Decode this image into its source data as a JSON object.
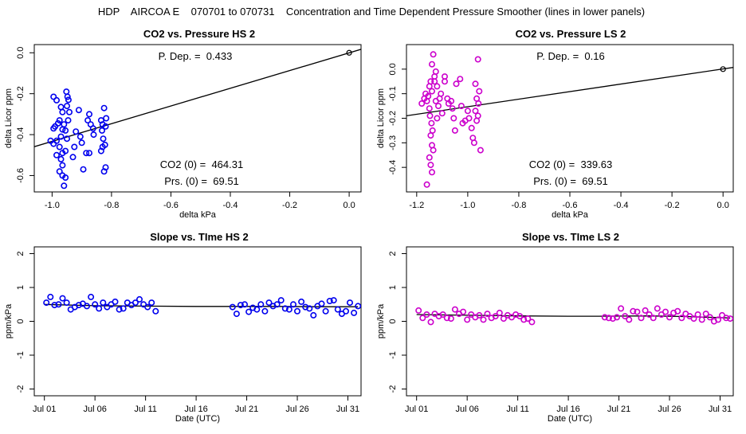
{
  "page_title": "HDP    AIRCOA E    070701 to 070731    Concentration and Time Dependent Pressure Smoother (lines in lower panels)",
  "colors": {
    "hs": "#0000ee",
    "ls": "#cc00cc",
    "axis": "#000000",
    "line": "#000000"
  },
  "chart_data": [
    {
      "id": "p1",
      "type": "scatter",
      "title": "CO2 vs. Pressure HS 2",
      "xlabel": "delta kPa",
      "ylabel": "delta Licor ppm",
      "xlim": [
        -1.06,
        0.04
      ],
      "ylim": [
        -0.68,
        0.04
      ],
      "xticks": [
        -1.0,
        -0.8,
        -0.6,
        -0.4,
        -0.2,
        0.0
      ],
      "xtick_labels": [
        "-1.0",
        "-0.8",
        "-0.6",
        "-0.4",
        "-0.2",
        "0.0"
      ],
      "yticks": [
        0.0,
        -0.2,
        -0.4,
        -0.6
      ],
      "ytick_labels": [
        "0.0",
        "-0.2",
        "-0.4",
        "-0.6"
      ],
      "color_key": "hs",
      "annotations": {
        "pdep": "P. Dep. =  0.433",
        "co2_0": "CO2 (0) =  464.31",
        "prs_0": "Prs. (0) =  69.51"
      },
      "fit_line": {
        "x": [
          -1.06,
          0.04
        ],
        "y": [
          -0.459,
          0.017
        ]
      },
      "reference_point": {
        "x": 0.0,
        "y": 0.0
      },
      "points": [
        [
          -0.995,
          -0.215
        ],
        [
          -0.985,
          -0.232
        ],
        [
          -0.97,
          -0.265
        ],
        [
          -0.965,
          -0.29
        ],
        [
          -0.975,
          -0.33
        ],
        [
          -0.99,
          -0.36
        ],
        [
          -0.98,
          -0.345
        ],
        [
          -0.995,
          -0.37
        ],
        [
          -0.965,
          -0.375
        ],
        [
          -0.97,
          -0.41
        ],
        [
          -0.985,
          -0.43
        ],
        [
          -0.995,
          -0.445
        ],
        [
          -1.005,
          -0.43
        ],
        [
          -0.975,
          -0.46
        ],
        [
          -0.965,
          -0.49
        ],
        [
          -0.985,
          -0.5
        ],
        [
          -0.97,
          -0.52
        ],
        [
          -0.965,
          -0.55
        ],
        [
          -0.975,
          -0.58
        ],
        [
          -0.965,
          -0.6
        ],
        [
          -0.955,
          -0.61
        ],
        [
          -0.96,
          -0.65
        ],
        [
          -0.955,
          -0.38
        ],
        [
          -0.96,
          -0.35
        ],
        [
          -0.95,
          -0.26
        ],
        [
          -0.948,
          -0.215
        ],
        [
          -0.952,
          -0.19
        ],
        [
          -0.945,
          -0.23
        ],
        [
          -0.942,
          -0.29
        ],
        [
          -0.946,
          -0.33
        ],
        [
          -0.95,
          -0.42
        ],
        [
          -0.955,
          -0.48
        ],
        [
          -0.93,
          -0.51
        ],
        [
          -0.925,
          -0.46
        ],
        [
          -0.92,
          -0.385
        ],
        [
          -0.91,
          -0.28
        ],
        [
          -0.905,
          -0.41
        ],
        [
          -0.9,
          -0.44
        ],
        [
          -0.895,
          -0.57
        ],
        [
          -0.885,
          -0.49
        ],
        [
          -0.875,
          -0.49
        ],
        [
          -0.88,
          -0.33
        ],
        [
          -0.875,
          -0.3
        ],
        [
          -0.87,
          -0.35
        ],
        [
          -0.86,
          -0.4
        ],
        [
          -0.862,
          -0.37
        ],
        [
          -0.835,
          -0.33
        ],
        [
          -0.83,
          -0.35
        ],
        [
          -0.825,
          -0.27
        ],
        [
          -0.832,
          -0.38
        ],
        [
          -0.828,
          -0.42
        ],
        [
          -0.822,
          -0.45
        ],
        [
          -0.83,
          -0.46
        ],
        [
          -0.835,
          -0.48
        ],
        [
          -0.82,
          -0.56
        ],
        [
          -0.825,
          -0.58
        ],
        [
          -0.818,
          -0.32
        ],
        [
          -0.82,
          -0.36
        ]
      ]
    },
    {
      "id": "p2",
      "type": "scatter",
      "title": "CO2 vs. Pressure LS 2",
      "xlabel": "delta kPa",
      "ylabel": "delta Licor ppm",
      "xlim": [
        -1.24,
        0.04
      ],
      "ylim": [
        -0.5,
        0.1
      ],
      "xticks": [
        -1.2,
        -1.0,
        -0.8,
        -0.6,
        -0.4,
        -0.2,
        0.0
      ],
      "xtick_labels": [
        "-1.2",
        "-1.0",
        "-0.8",
        "-0.6",
        "-0.4",
        "-0.2",
        "0.0"
      ],
      "yticks": [
        0.0,
        -0.1,
        -0.2,
        -0.3,
        -0.4
      ],
      "ytick_labels": [
        "0.0",
        "-0.1",
        "-0.2",
        "-0.3",
        "-0.4"
      ],
      "color_key": "ls",
      "annotations": {
        "pdep": "P. Dep. =  0.16",
        "co2_0": "CO2 (0) =  339.63",
        "prs_0": "Prs. (0) =  69.51"
      },
      "fit_line": {
        "x": [
          -1.24,
          0.04
        ],
        "y": [
          -0.19,
          0.007
        ]
      },
      "reference_point": {
        "x": 0.0,
        "y": 0.0
      },
      "points": [
        [
          -1.18,
          -0.14
        ],
        [
          -1.17,
          -0.12
        ],
        [
          -1.165,
          -0.1
        ],
        [
          -1.16,
          -0.13
        ],
        [
          -1.155,
          -0.11
        ],
        [
          -1.15,
          -0.07
        ],
        [
          -1.145,
          -0.05
        ],
        [
          -1.14,
          0.02
        ],
        [
          -1.135,
          0.06
        ],
        [
          -1.13,
          -0.03
        ],
        [
          -1.125,
          -0.01
        ],
        [
          -1.14,
          -0.09
        ],
        [
          -1.15,
          -0.16
        ],
        [
          -1.148,
          -0.19
        ],
        [
          -1.142,
          -0.22
        ],
        [
          -1.138,
          -0.25
        ],
        [
          -1.145,
          -0.27
        ],
        [
          -1.14,
          -0.31
        ],
        [
          -1.135,
          -0.33
        ],
        [
          -1.15,
          -0.36
        ],
        [
          -1.145,
          -0.39
        ],
        [
          -1.14,
          -0.42
        ],
        [
          -1.16,
          -0.47
        ],
        [
          -1.12,
          -0.2
        ],
        [
          -1.115,
          -0.15
        ],
        [
          -1.11,
          -0.12
        ],
        [
          -1.125,
          -0.13
        ],
        [
          -1.13,
          -0.05
        ],
        [
          -1.12,
          -0.07
        ],
        [
          -1.105,
          -0.1
        ],
        [
          -1.09,
          -0.03
        ],
        [
          -1.08,
          -0.12
        ],
        [
          -1.075,
          -0.14
        ],
        [
          -1.06,
          -0.16
        ],
        [
          -1.055,
          -0.2
        ],
        [
          -1.05,
          -0.25
        ],
        [
          -1.045,
          -0.06
        ],
        [
          -1.03,
          -0.04
        ],
        [
          -1.025,
          -0.15
        ],
        [
          -1.02,
          -0.22
        ],
        [
          -1.01,
          -0.21
        ],
        [
          -1.0,
          -0.17
        ],
        [
          -0.995,
          -0.2
        ],
        [
          -0.985,
          -0.24
        ],
        [
          -0.98,
          -0.28
        ],
        [
          -0.975,
          -0.3
        ],
        [
          -0.97,
          -0.06
        ],
        [
          -0.965,
          -0.12
        ],
        [
          -0.96,
          -0.19
        ],
        [
          -0.965,
          -0.21
        ],
        [
          -0.958,
          -0.14
        ],
        [
          -0.955,
          -0.09
        ],
        [
          -0.96,
          0.04
        ],
        [
          -0.95,
          -0.33
        ],
        [
          -0.97,
          -0.17
        ],
        [
          -1.065,
          -0.13
        ],
        [
          -1.1,
          -0.18
        ],
        [
          -1.09,
          -0.05
        ]
      ]
    },
    {
      "id": "p3",
      "type": "scatter",
      "title": "Slope vs. TIme HS 2",
      "xlabel": "Date (UTC)",
      "ylabel": "ppm/kPa",
      "xlim": [
        0.0,
        32.3
      ],
      "ylim": [
        -2.2,
        2.2
      ],
      "xticks": [
        1,
        6,
        11,
        16,
        21,
        26,
        31
      ],
      "xtick_labels": [
        "Jul 01",
        "Jul 06",
        "Jul 11",
        "Jul 16",
        "Jul 21",
        "Jul 26",
        "Jul 31"
      ],
      "yticks": [
        -2,
        -1,
        0,
        1,
        2
      ],
      "ytick_labels": [
        "-2",
        "-1",
        "0",
        "1",
        "2"
      ],
      "color_key": "hs",
      "smoother": [
        [
          1.0,
          0.5
        ],
        [
          6.0,
          0.46
        ],
        [
          11.0,
          0.45
        ],
        [
          16.0,
          0.44
        ],
        [
          19.0,
          0.44
        ],
        [
          24.0,
          0.44
        ],
        [
          28.0,
          0.43
        ],
        [
          32.0,
          0.43
        ]
      ],
      "points": [
        [
          1.2,
          0.55
        ],
        [
          1.6,
          0.72
        ],
        [
          2.0,
          0.48
        ],
        [
          2.4,
          0.5
        ],
        [
          2.8,
          0.68
        ],
        [
          3.2,
          0.55
        ],
        [
          3.6,
          0.35
        ],
        [
          4.0,
          0.42
        ],
        [
          4.4,
          0.48
        ],
        [
          4.8,
          0.52
        ],
        [
          5.2,
          0.45
        ],
        [
          5.6,
          0.72
        ],
        [
          6.0,
          0.5
        ],
        [
          6.4,
          0.38
        ],
        [
          6.8,
          0.55
        ],
        [
          7.2,
          0.42
        ],
        [
          7.6,
          0.5
        ],
        [
          8.0,
          0.58
        ],
        [
          8.4,
          0.35
        ],
        [
          8.8,
          0.38
        ],
        [
          9.2,
          0.55
        ],
        [
          9.6,
          0.48
        ],
        [
          10.0,
          0.55
        ],
        [
          10.4,
          0.65
        ],
        [
          10.8,
          0.5
        ],
        [
          11.2,
          0.42
        ],
        [
          11.6,
          0.55
        ],
        [
          12.0,
          0.3
        ],
        [
          19.6,
          0.42
        ],
        [
          20.0,
          0.22
        ],
        [
          20.4,
          0.48
        ],
        [
          20.8,
          0.5
        ],
        [
          21.2,
          0.28
        ],
        [
          21.6,
          0.4
        ],
        [
          22.0,
          0.35
        ],
        [
          22.4,
          0.5
        ],
        [
          22.8,
          0.3
        ],
        [
          23.2,
          0.55
        ],
        [
          23.6,
          0.45
        ],
        [
          24.0,
          0.5
        ],
        [
          24.4,
          0.62
        ],
        [
          24.8,
          0.38
        ],
        [
          25.2,
          0.35
        ],
        [
          25.6,
          0.5
        ],
        [
          26.0,
          0.3
        ],
        [
          26.4,
          0.58
        ],
        [
          26.8,
          0.42
        ],
        [
          27.2,
          0.38
        ],
        [
          27.6,
          0.18
        ],
        [
          28.0,
          0.45
        ],
        [
          28.4,
          0.52
        ],
        [
          28.8,
          0.3
        ],
        [
          29.2,
          0.6
        ],
        [
          29.6,
          0.62
        ],
        [
          30.0,
          0.35
        ],
        [
          30.4,
          0.22
        ],
        [
          30.8,
          0.3
        ],
        [
          31.2,
          0.55
        ],
        [
          31.6,
          0.25
        ],
        [
          32.0,
          0.45
        ]
      ]
    },
    {
      "id": "p4",
      "type": "scatter",
      "title": "Slope vs. TIme LS 2",
      "xlabel": "Date (UTC)",
      "ylabel": "ppm/kPa",
      "xlim": [
        0.0,
        32.3
      ],
      "ylim": [
        -2.2,
        2.2
      ],
      "xticks": [
        1,
        6,
        11,
        16,
        21,
        26,
        31
      ],
      "xtick_labels": [
        "Jul 01",
        "Jul 06",
        "Jul 11",
        "Jul 16",
        "Jul 21",
        "Jul 26",
        "Jul 31"
      ],
      "yticks": [
        -2,
        -1,
        0,
        1,
        2
      ],
      "ytick_labels": [
        "-2",
        "-1",
        "0",
        "1",
        "2"
      ],
      "color_key": "ls",
      "smoother": [
        [
          1.0,
          0.2
        ],
        [
          6.0,
          0.18
        ],
        [
          11.0,
          0.16
        ],
        [
          16.0,
          0.15
        ],
        [
          19.0,
          0.15
        ],
        [
          24.0,
          0.16
        ],
        [
          28.0,
          0.14
        ],
        [
          32.0,
          0.1
        ]
      ],
      "points": [
        [
          1.2,
          0.32
        ],
        [
          1.6,
          0.1
        ],
        [
          2.0,
          0.2
        ],
        [
          2.4,
          -0.02
        ],
        [
          2.8,
          0.22
        ],
        [
          3.2,
          0.15
        ],
        [
          3.6,
          0.2
        ],
        [
          4.0,
          0.1
        ],
        [
          4.4,
          0.08
        ],
        [
          4.8,
          0.35
        ],
        [
          5.2,
          0.22
        ],
        [
          5.6,
          0.28
        ],
        [
          6.0,
          0.05
        ],
        [
          6.4,
          0.2
        ],
        [
          6.8,
          0.12
        ],
        [
          7.2,
          0.18
        ],
        [
          7.6,
          0.05
        ],
        [
          8.0,
          0.22
        ],
        [
          8.4,
          0.1
        ],
        [
          8.8,
          0.15
        ],
        [
          9.2,
          0.25
        ],
        [
          9.6,
          0.08
        ],
        [
          10.0,
          0.18
        ],
        [
          10.4,
          0.12
        ],
        [
          10.8,
          0.2
        ],
        [
          11.2,
          0.15
        ],
        [
          11.6,
          0.05
        ],
        [
          12.0,
          0.08
        ],
        [
          12.4,
          -0.02
        ],
        [
          19.6,
          0.12
        ],
        [
          20.0,
          0.1
        ],
        [
          20.4,
          0.08
        ],
        [
          20.8,
          0.12
        ],
        [
          21.2,
          0.38
        ],
        [
          21.6,
          0.15
        ],
        [
          22.0,
          0.05
        ],
        [
          22.4,
          0.3
        ],
        [
          22.8,
          0.28
        ],
        [
          23.2,
          0.1
        ],
        [
          23.6,
          0.32
        ],
        [
          24.0,
          0.2
        ],
        [
          24.4,
          0.1
        ],
        [
          24.8,
          0.38
        ],
        [
          25.2,
          0.2
        ],
        [
          25.6,
          0.28
        ],
        [
          26.0,
          0.12
        ],
        [
          26.4,
          0.25
        ],
        [
          26.8,
          0.3
        ],
        [
          27.2,
          0.1
        ],
        [
          27.6,
          0.22
        ],
        [
          28.0,
          0.15
        ],
        [
          28.4,
          0.08
        ],
        [
          28.8,
          0.2
        ],
        [
          29.2,
          0.05
        ],
        [
          29.6,
          0.22
        ],
        [
          30.0,
          0.12
        ],
        [
          30.4,
          0.0
        ],
        [
          30.8,
          0.05
        ],
        [
          31.2,
          0.18
        ],
        [
          31.6,
          0.1
        ],
        [
          32.0,
          0.08
        ]
      ]
    }
  ]
}
